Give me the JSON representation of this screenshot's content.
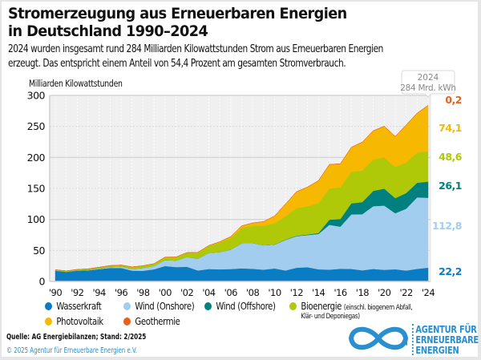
{
  "title_line1": "Stromerzeugung aus Erneuerbaren Energien",
  "title_line2": "in Deutschland 1990–2024",
  "subtitle_line1": "2024 wurden insgesamt rund 284 Milliarden Kilowattstunden Strom aus Erneuerbaren Energien",
  "subtitle_line2": "erzeugt. Das entspricht einem Anteil von 54,4 Prozent am gesamten Stromverbrauch.",
  "source": "Quelle: AG Energiebilanzen; Stand: 2/2025",
  "copyright": "© 2025 Agentur für Erneuerbare Energien e.V.",
  "logo": {
    "line1": "AGENTUR FÜR",
    "line2": "ERNEUERBARE",
    "line3": "ENERGIEN",
    "color": "#2a8fce"
  },
  "tooltip": {
    "line1": "2024",
    "line2": "284 Mrd. kWh"
  },
  "legend": [
    {
      "key": "wasser",
      "label": "Wasserkraft",
      "color": "#0a7cc4"
    },
    {
      "key": "onshore",
      "label": "Wind (Onshore)",
      "color": "#a3cdee"
    },
    {
      "key": "offshore",
      "label": "Wind (Offshore)",
      "color": "#00807f"
    },
    {
      "key": "bio",
      "label": "Bioenergie",
      "note_line1": "(einschl. biogenem Abfall,",
      "note_line2": "Klär- und Deponiegas)",
      "color": "#afc909"
    },
    {
      "key": "pv",
      "label": "Photovoltaik",
      "color": "#f6b800"
    },
    {
      "key": "geo",
      "label": "Geothermie",
      "color": "#e8601c"
    }
  ],
  "chart_data": {
    "type": "area",
    "stacked": true,
    "title": "Stromerzeugung aus Erneuerbaren Energien in Deutschland 1990–2024",
    "ylabel": "Milliarden Kilowattstunden",
    "xlabel": "",
    "ylim": [
      0,
      300
    ],
    "yticks": [
      0,
      50,
      100,
      150,
      200,
      250,
      300
    ],
    "grid": true,
    "legend_position": "bottom",
    "x": [
      1990,
      1991,
      1992,
      1993,
      1994,
      1995,
      1996,
      1997,
      1998,
      1999,
      2000,
      2001,
      2002,
      2003,
      2004,
      2005,
      2006,
      2007,
      2008,
      2009,
      2010,
      2011,
      2012,
      2013,
      2014,
      2015,
      2016,
      2017,
      2018,
      2019,
      2020,
      2021,
      2022,
      2023,
      2024
    ],
    "xtick_labels": [
      "'90",
      "'92",
      "'94",
      "'96",
      "'98",
      "'00",
      "'02",
      "'04",
      "'06",
      "'08",
      "'10",
      "'12",
      "'14",
      "'16",
      "'18",
      "'20",
      "'22",
      "'24"
    ],
    "series": [
      {
        "name": "Wasserkraft",
        "color": "#0a7cc4",
        "values": [
          17.4,
          15.4,
          17.4,
          17.9,
          19.9,
          21.8,
          21.9,
          17.4,
          17.2,
          19.6,
          24.9,
          23.2,
          23.7,
          17.7,
          20.1,
          19.6,
          20.0,
          21.2,
          20.4,
          19.0,
          21.0,
          17.7,
          22.1,
          23.0,
          19.6,
          19.0,
          20.5,
          20.2,
          18.0,
          20.2,
          18.7,
          19.7,
          17.6,
          20.3,
          22.2
        ]
      },
      {
        "name": "Wind (Onshore)",
        "color": "#a3cdee",
        "values": [
          0.1,
          0.1,
          0.3,
          0.6,
          0.9,
          1.5,
          2.0,
          3.0,
          4.5,
          5.5,
          9.5,
          10.5,
          15.8,
          19.1,
          26.0,
          27.8,
          31.3,
          40.5,
          41.4,
          39.4,
          38.4,
          49.3,
          50.9,
          51.8,
          57.0,
          72.3,
          67.9,
          88.0,
          90.5,
          101.2,
          103.7,
          90.3,
          99.7,
          115.3,
          112.8
        ]
      },
      {
        "name": "Wind (Offshore)",
        "color": "#00807f",
        "values": [
          0,
          0,
          0,
          0,
          0,
          0,
          0,
          0,
          0,
          0,
          0,
          0,
          0,
          0,
          0,
          0,
          0,
          0,
          0,
          0.04,
          0.2,
          0.6,
          0.7,
          0.9,
          1.5,
          8.3,
          12.3,
          17.7,
          19.5,
          24.7,
          27.3,
          24.4,
          25.2,
          23.5,
          26.1
        ]
      },
      {
        "name": "Bioenergie",
        "color": "#afc909",
        "values": [
          1.4,
          1.5,
          1.6,
          1.8,
          2.1,
          2.3,
          2.5,
          3.0,
          3.6,
          3.5,
          4.7,
          5.5,
          6.8,
          9.8,
          11.2,
          15.3,
          18.9,
          24.8,
          28.1,
          31.5,
          34.3,
          37.7,
          44.6,
          45.5,
          48.3,
          50.3,
          50.9,
          50.9,
          50.8,
          50.4,
          50.5,
          50.0,
          49.4,
          48.6,
          48.6
        ]
      },
      {
        "name": "Photovoltaik",
        "color": "#f6b800",
        "values": [
          0,
          0,
          0,
          0,
          0,
          0,
          0,
          0,
          0,
          0,
          0.1,
          0.1,
          0.2,
          0.3,
          0.6,
          1.3,
          2.2,
          3.1,
          4.4,
          6.6,
          11.7,
          19.6,
          26.4,
          31.0,
          36.1,
          38.7,
          38.1,
          39.4,
          45.8,
          46.4,
          50.0,
          49.3,
          60.3,
          63.6,
          74.1
        ]
      },
      {
        "name": "Geothermie",
        "color": "#e8601c",
        "values": [
          0,
          0,
          0,
          0,
          0,
          0,
          0,
          0,
          0,
          0,
          0,
          0,
          0,
          0,
          0,
          0,
          0,
          0,
          0,
          0,
          0,
          0,
          0,
          0.1,
          0.1,
          0.1,
          0.2,
          0.2,
          0.2,
          0.2,
          0.2,
          0.2,
          0.2,
          0.2,
          0.2
        ]
      }
    ],
    "end_labels": [
      {
        "series": "Geothermie",
        "text": "0,2",
        "color": "#e8601c"
      },
      {
        "series": "Photovoltaik",
        "text": "74,1",
        "color": "#f6b800"
      },
      {
        "series": "Bioenergie",
        "text": "48,6",
        "color": "#afc909"
      },
      {
        "series": "Wind (Offshore)",
        "text": "26,1",
        "color": "#00807f"
      },
      {
        "series": "Wind (Onshore)",
        "text": "112,8",
        "color": "#a3cdee"
      },
      {
        "series": "Wasserkraft",
        "text": "22,2",
        "color": "#0a7cc4"
      }
    ],
    "annotation": {
      "x": 2024,
      "text": "2024 · 284 Mrd. kWh"
    }
  }
}
